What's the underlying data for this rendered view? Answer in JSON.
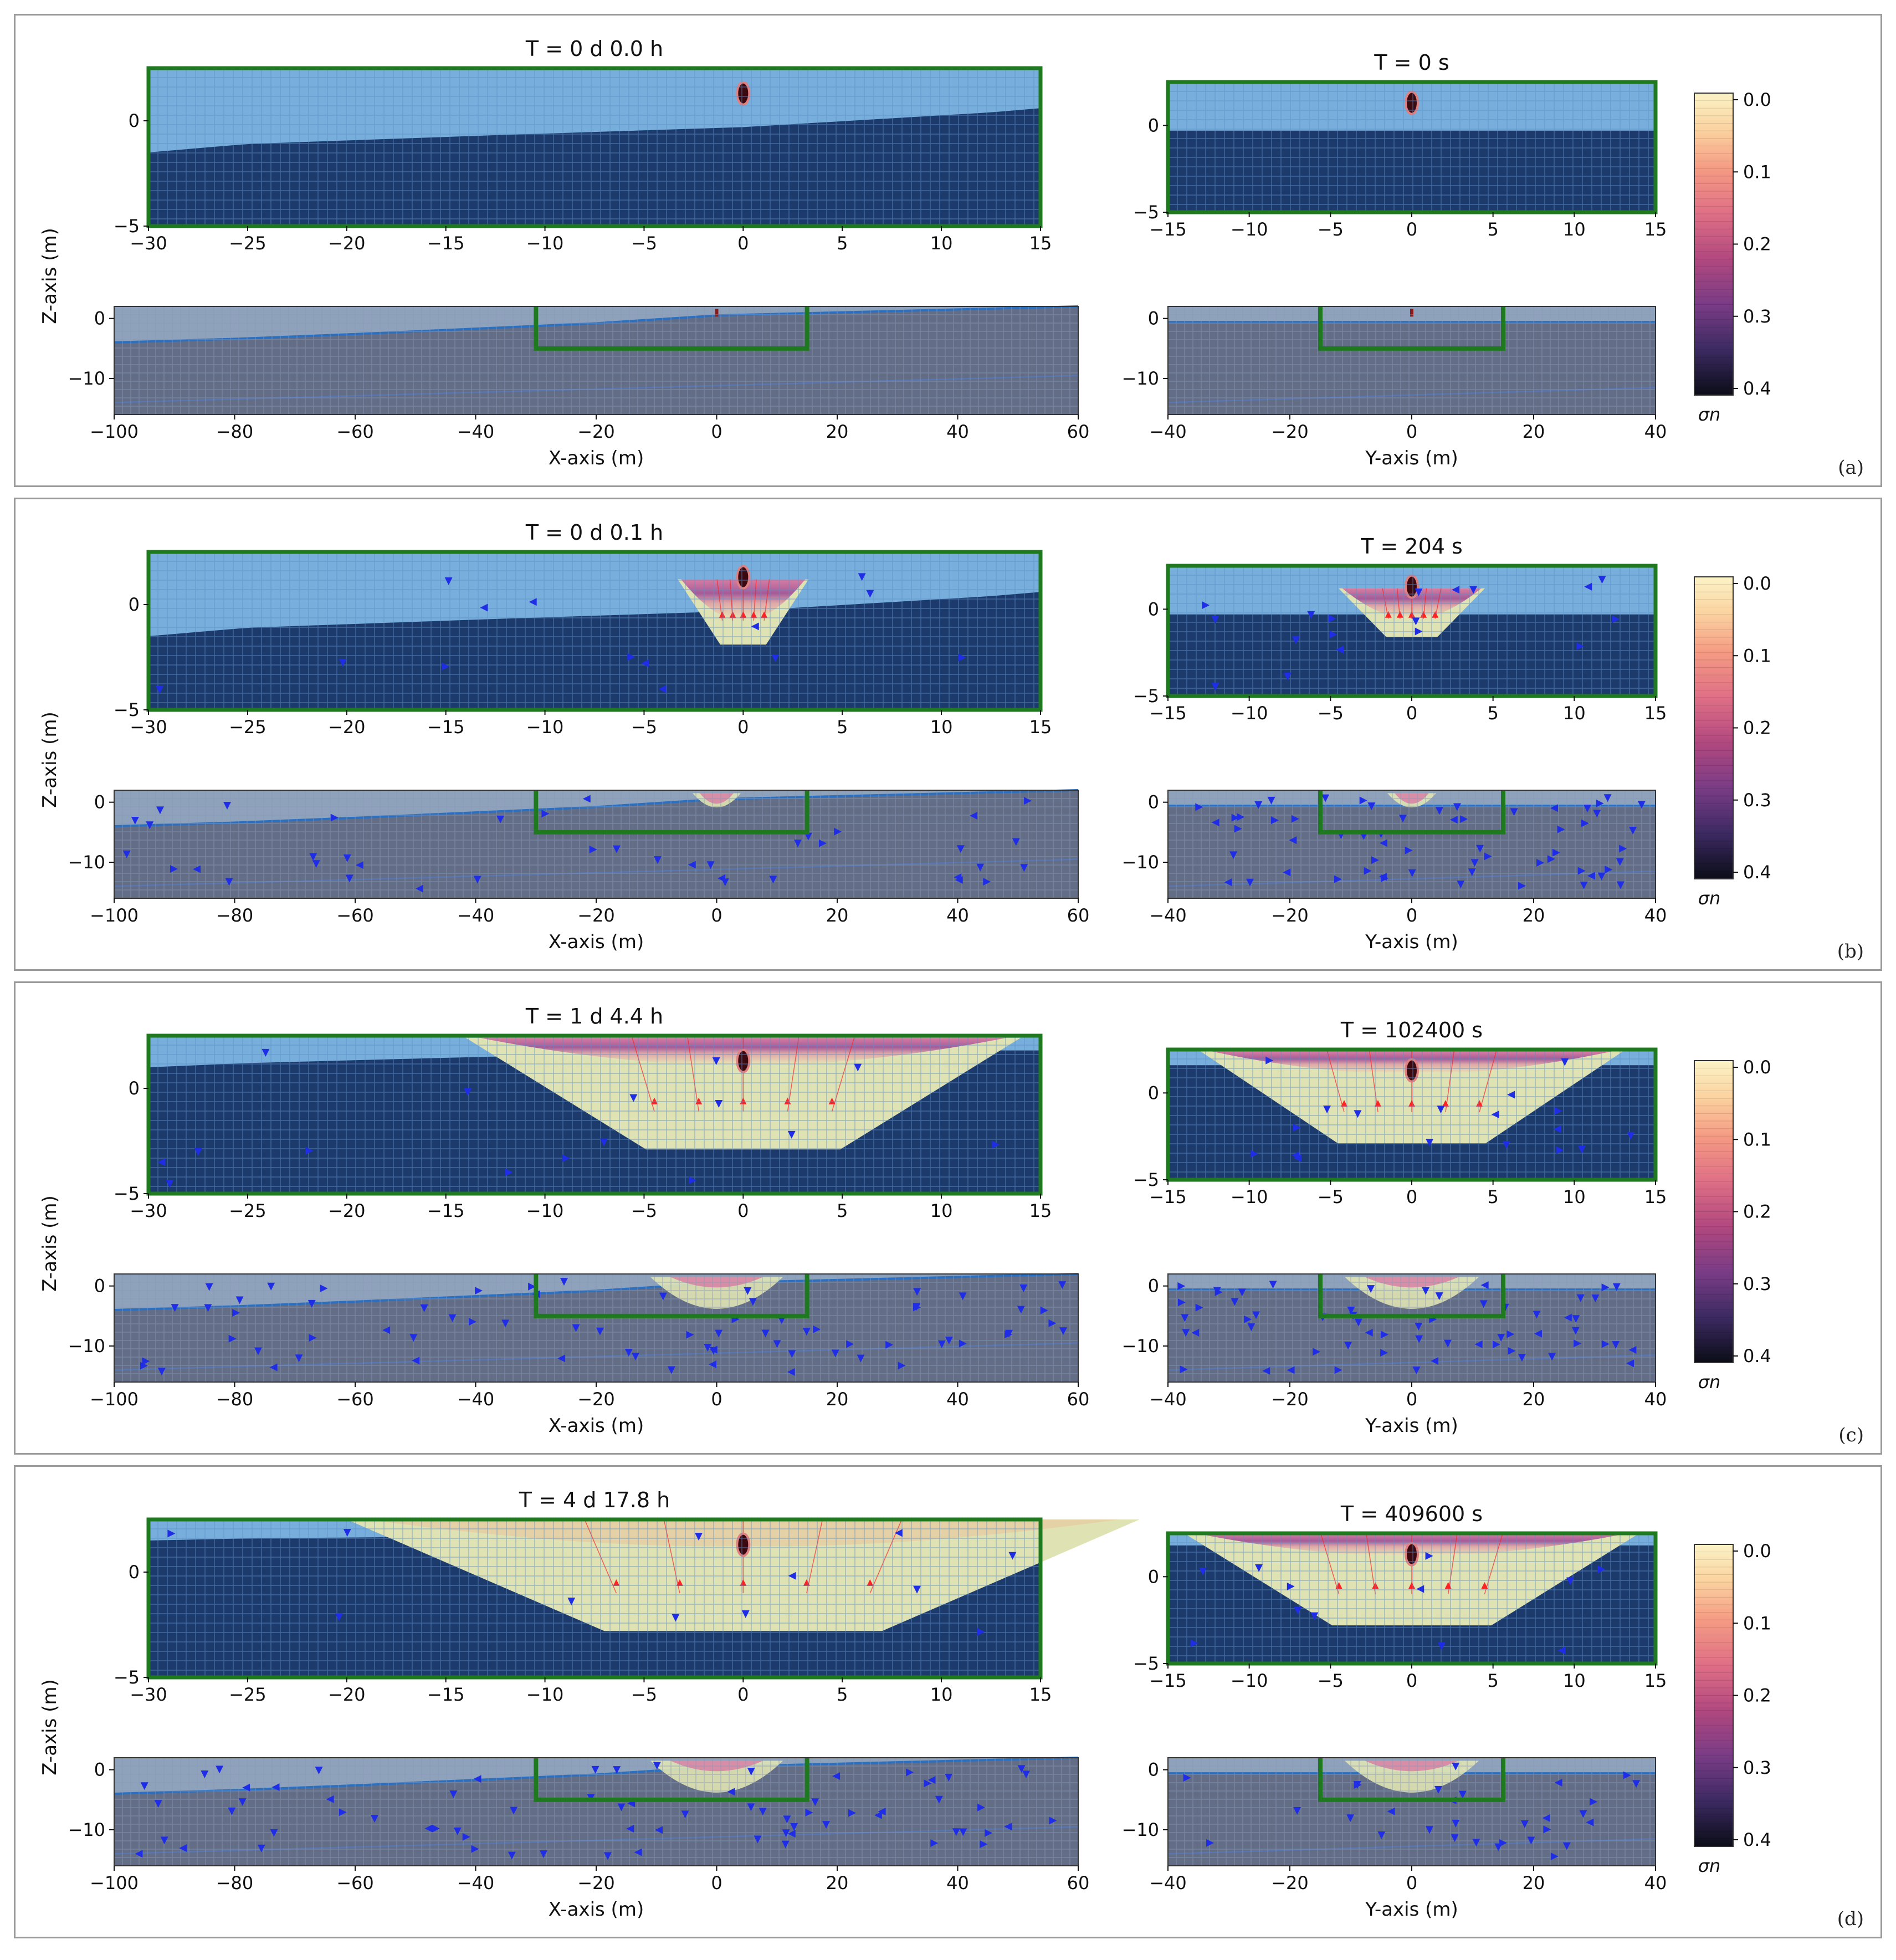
{
  "figure": {
    "colorbar": {
      "label": "σn",
      "ticks": [
        "0.0",
        "0.1",
        "0.2",
        "0.3",
        "0.4"
      ]
    },
    "panel_letters": [
      "(a)",
      "(b)",
      "(c)",
      "(d)"
    ]
  },
  "colors": {
    "unsat": "#78aedb",
    "sat": "#1d3a6c",
    "far_bg": "#636e86",
    "far_near": "#8fa2bb",
    "plume": "#dfe3b4",
    "wall": "#1f7a1f",
    "inflow": "#ff2222",
    "flow_arrow": "#1f2ee6",
    "streamline": "#7c8fd6",
    "water_table": "#2a6fc0"
  },
  "chart_data": [
    {
      "type": "heatmap",
      "panel": "(a)",
      "zoom_left": {
        "title": "T = 0 d  0.0 h",
        "xlim": [
          -30,
          15
        ],
        "ylim": [
          -5,
          2.5
        ],
        "xticks": [
          "−30",
          "−25",
          "−20",
          "−15",
          "−10",
          "−5",
          "0",
          "5",
          "10",
          "15"
        ],
        "yticks": [
          "0",
          "−5"
        ],
        "water_table": [
          [
            -30,
            -1.5
          ],
          [
            -25,
            -1.1
          ],
          [
            -13,
            -0.7
          ],
          [
            0,
            -0.3
          ],
          [
            12.5,
            0.4
          ],
          [
            15,
            0.6
          ]
        ],
        "plume_depth": 0,
        "plume_halfwidth": 0,
        "arrows": 0,
        "source": [
          0,
          1.3
        ]
      },
      "zoom_right": {
        "title": "T = 0 s",
        "xlim": [
          -15,
          15
        ],
        "ylim": [
          -5,
          2.5
        ],
        "xticks": [
          "−15",
          "−10",
          "−5",
          "0",
          "5",
          "10",
          "15"
        ],
        "yticks": [
          "0",
          "−5"
        ],
        "water_table": [
          [
            -15,
            -0.3
          ],
          [
            15,
            -0.3
          ]
        ],
        "plume_depth": 0,
        "plume_halfwidth": 0,
        "arrows": 0,
        "source": [
          0,
          1.3
        ]
      },
      "wide_left": {
        "xlim": [
          -100,
          60
        ],
        "ylim": [
          -16,
          2
        ],
        "xlabel": "X-axis (m)",
        "ylabel": "Z-axis (m)",
        "xticks": [
          "−100",
          "−80",
          "−60",
          "−40",
          "−20",
          "0",
          "20",
          "40",
          "60"
        ],
        "yticks": [
          "0",
          "−10"
        ],
        "plume_depth": 0,
        "arrows": 0
      },
      "wide_right": {
        "xlim": [
          -40,
          40
        ],
        "ylim": [
          -16,
          2
        ],
        "xlabel": "Y-axis (m)",
        "xticks": [
          "−40",
          "−20",
          "0",
          "20",
          "40"
        ],
        "yticks": [
          "0",
          "−10"
        ],
        "plume_depth": 0,
        "arrows": 0
      }
    },
    {
      "type": "heatmap",
      "panel": "(b)",
      "zoom_left": {
        "title": "T = 0 d  0.1 h",
        "xlim": [
          -30,
          15
        ],
        "ylim": [
          -5,
          2.5
        ],
        "xticks": [
          "−30",
          "−25",
          "−20",
          "−15",
          "−10",
          "−5",
          "0",
          "5",
          "10",
          "15"
        ],
        "yticks": [
          "0",
          "−5"
        ],
        "water_table": [
          [
            -30,
            -1.5
          ],
          [
            -25,
            -1.1
          ],
          [
            -13,
            -0.7
          ],
          [
            0,
            -0.3
          ],
          [
            12.5,
            0.4
          ],
          [
            15,
            0.6
          ]
        ],
        "plume_depth": 2.8,
        "plume_halfwidth": 3.3,
        "arrows": 14,
        "source": [
          0,
          1.3
        ]
      },
      "zoom_right": {
        "title": "T = 204 s",
        "xlim": [
          -15,
          15
        ],
        "ylim": [
          -5,
          2.5
        ],
        "xticks": [
          "−15",
          "−10",
          "−5",
          "0",
          "5",
          "10",
          "15"
        ],
        "yticks": [
          "0",
          "−5"
        ],
        "water_table": [
          [
            -15,
            -0.3
          ],
          [
            15,
            -0.3
          ]
        ],
        "plume_depth": 2.5,
        "plume_halfwidth": 4.5,
        "arrows": 18,
        "source": [
          0,
          1.3
        ]
      },
      "wide_left": {
        "xlim": [
          -100,
          60
        ],
        "ylim": [
          -16,
          2
        ],
        "xlabel": "X-axis (m)",
        "ylabel": "Z-axis (m)",
        "xticks": [
          "−100",
          "−80",
          "−60",
          "−40",
          "−20",
          "0",
          "20",
          "40",
          "60"
        ],
        "yticks": [
          "0",
          "−10"
        ],
        "plume_depth": 2.5,
        "arrows": 40
      },
      "wide_right": {
        "xlim": [
          -40,
          40
        ],
        "ylim": [
          -16,
          2
        ],
        "xlabel": "Y-axis (m)",
        "xticks": [
          "−40",
          "−20",
          "0",
          "20",
          "40"
        ],
        "yticks": [
          "0",
          "−10"
        ],
        "plume_depth": 2.5,
        "arrows": 60
      }
    },
    {
      "type": "heatmap",
      "panel": "(c)",
      "zoom_left": {
        "title": "T = 1 d  4.4 h",
        "xlim": [
          -30,
          15
        ],
        "ylim": [
          -5,
          2.5
        ],
        "xticks": [
          "−30",
          "−25",
          "−20",
          "−15",
          "−10",
          "−5",
          "0",
          "5",
          "10",
          "15"
        ],
        "yticks": [
          "0",
          "−5"
        ],
        "water_table": [
          [
            -30,
            1.0
          ],
          [
            -25,
            1.2
          ],
          [
            -13,
            1.5
          ],
          [
            0,
            1.6
          ],
          [
            12.5,
            1.8
          ],
          [
            15,
            1.8
          ]
        ],
        "plume_depth": 5,
        "plume_halfwidth": 14,
        "arrows": 16,
        "source": [
          0,
          1.3
        ]
      },
      "zoom_right": {
        "title": "T = 102400 s",
        "xlim": [
          -15,
          15
        ],
        "ylim": [
          -5,
          2.5
        ],
        "xticks": [
          "−15",
          "−10",
          "−5",
          "0",
          "5",
          "10",
          "15"
        ],
        "yticks": [
          "0",
          "−5"
        ],
        "water_table": [
          [
            -15,
            1.6
          ],
          [
            15,
            1.6
          ]
        ],
        "plume_depth": 5,
        "plume_halfwidth": 13,
        "arrows": 18,
        "source": [
          0,
          1.3
        ]
      },
      "wide_left": {
        "xlim": [
          -100,
          60
        ],
        "ylim": [
          -16,
          2
        ],
        "xlabel": "X-axis (m)",
        "ylabel": "Z-axis (m)",
        "xticks": [
          "−100",
          "−80",
          "−60",
          "−40",
          "−20",
          "0",
          "20",
          "40",
          "60"
        ],
        "yticks": [
          "0",
          "−10"
        ],
        "plume_depth": 7,
        "arrows": 70
      },
      "wide_right": {
        "xlim": [
          -40,
          40
        ],
        "ylim": [
          -16,
          2
        ],
        "xlabel": "Y-axis (m)",
        "xticks": [
          "−40",
          "−20",
          "0",
          "20",
          "40"
        ],
        "yticks": [
          "0",
          "−10"
        ],
        "plume_depth": 7,
        "arrows": 60
      }
    },
    {
      "type": "heatmap",
      "panel": "(d)",
      "zoom_left": {
        "title": "T = 4 d 17.8 h",
        "xlim": [
          -30,
          15
        ],
        "ylim": [
          -5,
          2.5
        ],
        "xticks": [
          "−30",
          "−25",
          "−20",
          "−15",
          "−10",
          "−5",
          "0",
          "5",
          "10",
          "15"
        ],
        "yticks": [
          "0",
          "−5"
        ],
        "water_table": [
          [
            -30,
            1.5
          ],
          [
            -25,
            1.6
          ],
          [
            -13,
            1.7
          ],
          [
            0,
            1.8
          ],
          [
            12.5,
            1.9
          ],
          [
            15,
            1.9
          ]
        ],
        "plume_depth": 5,
        "plume_halfwidth": 20,
        "arrows": 12,
        "source": [
          0,
          1.3
        ]
      },
      "zoom_right": {
        "title": "T = 409600 s",
        "xlim": [
          -15,
          15
        ],
        "ylim": [
          -5,
          2.5
        ],
        "xticks": [
          "−15",
          "−10",
          "−5",
          "0",
          "5",
          "10",
          "15"
        ],
        "yticks": [
          "0",
          "−5"
        ],
        "water_table": [
          [
            -15,
            1.8
          ],
          [
            15,
            1.8
          ]
        ],
        "plume_depth": 5,
        "plume_halfwidth": 14,
        "arrows": 12,
        "source": [
          0,
          1.3
        ]
      },
      "wide_left": {
        "xlim": [
          -100,
          60
        ],
        "ylim": [
          -16,
          2
        ],
        "xlabel": "X-axis (m)",
        "ylabel": "Z-axis (m)",
        "xticks": [
          "−100",
          "−80",
          "−60",
          "−40",
          "−20",
          "0",
          "20",
          "40",
          "60"
        ],
        "yticks": [
          "0",
          "−10"
        ],
        "plume_depth": 7,
        "arrows": 70
      },
      "wide_right": {
        "xlim": [
          -40,
          40
        ],
        "ylim": [
          -16,
          2
        ],
        "xlabel": "Y-axis (m)",
        "xticks": [
          "−40",
          "−20",
          "0",
          "20",
          "40"
        ],
        "yticks": [
          "0",
          "−10"
        ],
        "plume_depth": 7,
        "arrows": 30
      }
    }
  ]
}
